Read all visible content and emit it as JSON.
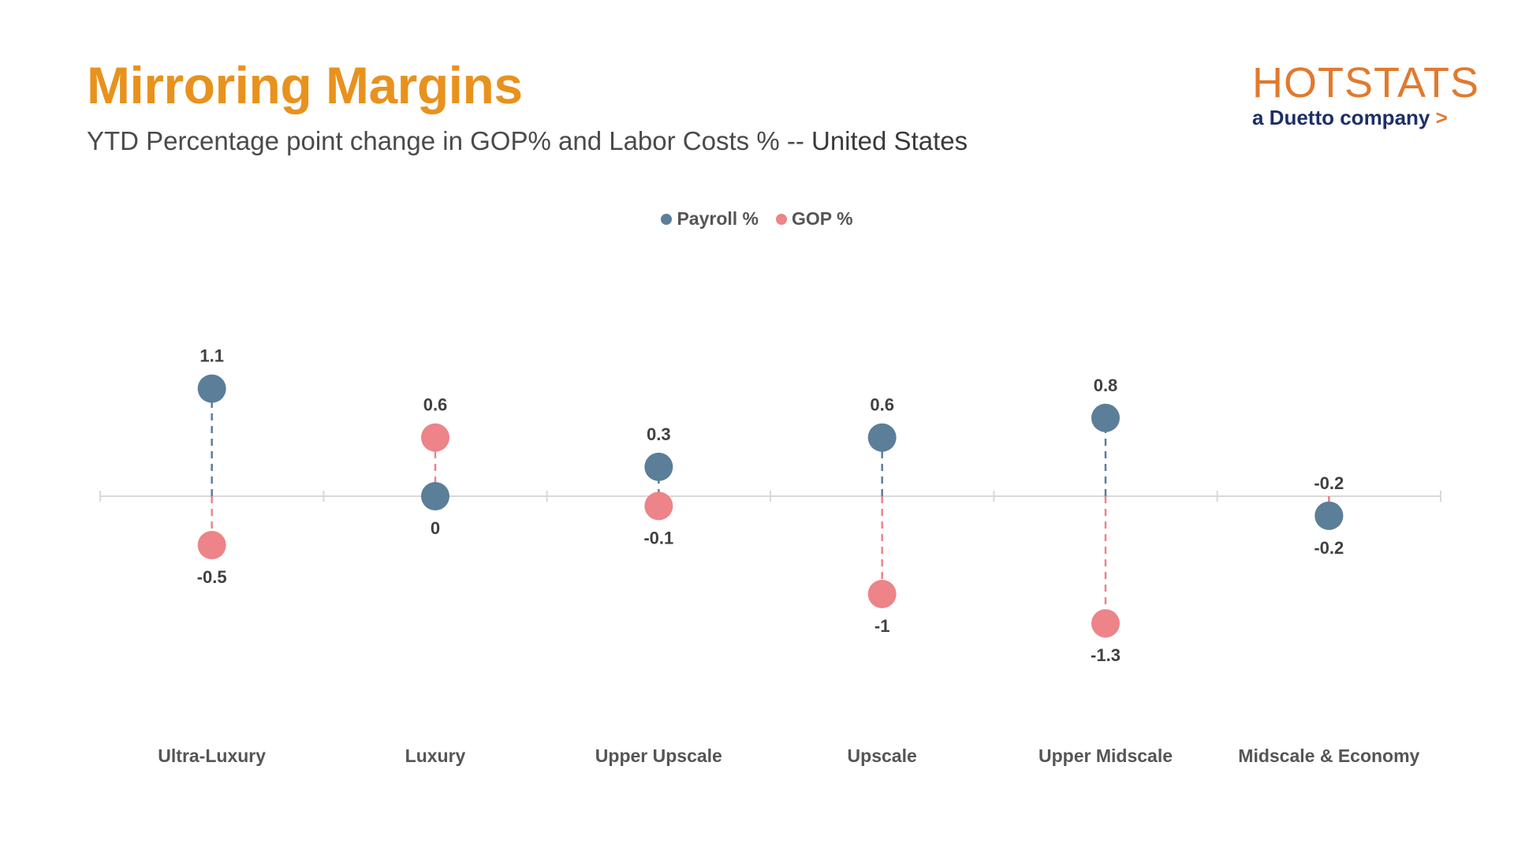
{
  "header": {
    "title": "Mirroring Margins",
    "subtitle_main": "YTD Percentage point change in GOP% and Labor Costs % -- ",
    "subtitle_region": "United States"
  },
  "logo": {
    "brand": "HOTSTATS",
    "tagline": "a Duetto company",
    "chevron": ">"
  },
  "legend": {
    "payroll_label": "Payroll %",
    "gop_label": "GOP %"
  },
  "colors": {
    "payroll": "#5B7E99",
    "gop": "#EC8489",
    "title": "#E8921E",
    "axis": "#d9d9d9",
    "label": "#404040"
  },
  "chart_data": {
    "type": "dot-plot",
    "title": "Mirroring Margins",
    "subtitle": "YTD Percentage point change in GOP% and Labor Costs % -- United States",
    "categories": [
      "Ultra-Luxury",
      "Luxury",
      "Upper Upscale",
      "Upscale",
      "Upper Midscale",
      "Midscale & Economy"
    ],
    "series": [
      {
        "name": "Payroll %",
        "values": [
          1.1,
          0,
          0.3,
          0.6,
          0.8,
          -0.2
        ]
      },
      {
        "name": "GOP %",
        "values": [
          -0.5,
          0.6,
          -0.1,
          -1,
          -1.3,
          -0.2
        ]
      }
    ],
    "ylim": [
      -1.6,
      1.6
    ],
    "xlabel": "",
    "ylabel": "",
    "legend_position": "top-center",
    "grid": false
  }
}
